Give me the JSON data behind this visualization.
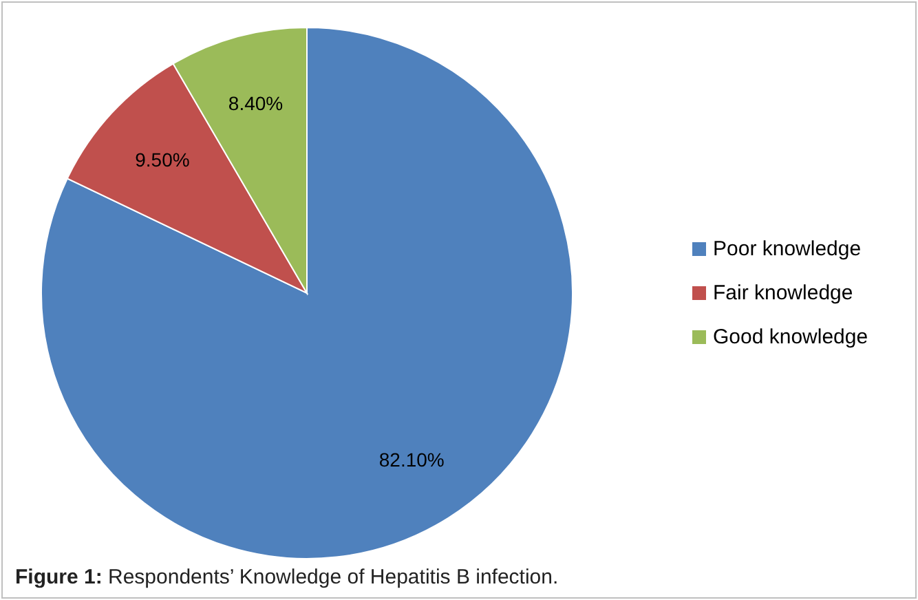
{
  "chart_data": {
    "type": "pie",
    "categories": [
      "Poor knowledge",
      "Fair knowledge",
      "Good knowledge"
    ],
    "values": [
      82.1,
      9.5,
      8.4
    ],
    "colors": [
      "#4f81bd",
      "#c0504d",
      "#9bbb59"
    ],
    "value_labels": [
      "82.10%",
      "9.50%",
      "8.40%"
    ],
    "legend": "right",
    "annotations": [
      "Figure 1: Respondents’ Knowledge of Hepatitis B infection."
    ]
  }
}
